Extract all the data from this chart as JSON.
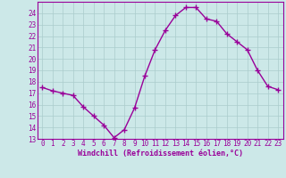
{
  "x": [
    0,
    1,
    2,
    3,
    4,
    5,
    6,
    7,
    8,
    9,
    10,
    11,
    12,
    13,
    14,
    15,
    16,
    17,
    18,
    19,
    20,
    21,
    22,
    23
  ],
  "y": [
    17.5,
    17.2,
    17.0,
    16.8,
    15.8,
    15.0,
    14.2,
    13.1,
    13.8,
    15.7,
    18.5,
    20.8,
    22.5,
    23.8,
    24.5,
    24.5,
    23.5,
    23.3,
    22.2,
    21.5,
    20.8,
    19.0,
    17.6,
    17.3
  ],
  "line_color": "#990099",
  "marker": "+",
  "marker_size": 4,
  "bg_color": "#cce8e8",
  "grid_color": "#aacccc",
  "xlabel": "Windchill (Refroidissement éolien,°C)",
  "xlim": [
    -0.5,
    23.5
  ],
  "ylim": [
    13,
    25
  ],
  "xtick_labels": [
    "0",
    "1",
    "2",
    "3",
    "4",
    "5",
    "6",
    "7",
    "8",
    "9",
    "10",
    "11",
    "12",
    "13",
    "14",
    "15",
    "16",
    "17",
    "18",
    "19",
    "20",
    "21",
    "22",
    "23"
  ],
  "ytick_labels": [
    "13",
    "14",
    "15",
    "16",
    "17",
    "18",
    "19",
    "20",
    "21",
    "22",
    "23",
    "24"
  ],
  "label_fontsize": 6,
  "tick_fontsize": 5.5,
  "line_width": 1.0
}
